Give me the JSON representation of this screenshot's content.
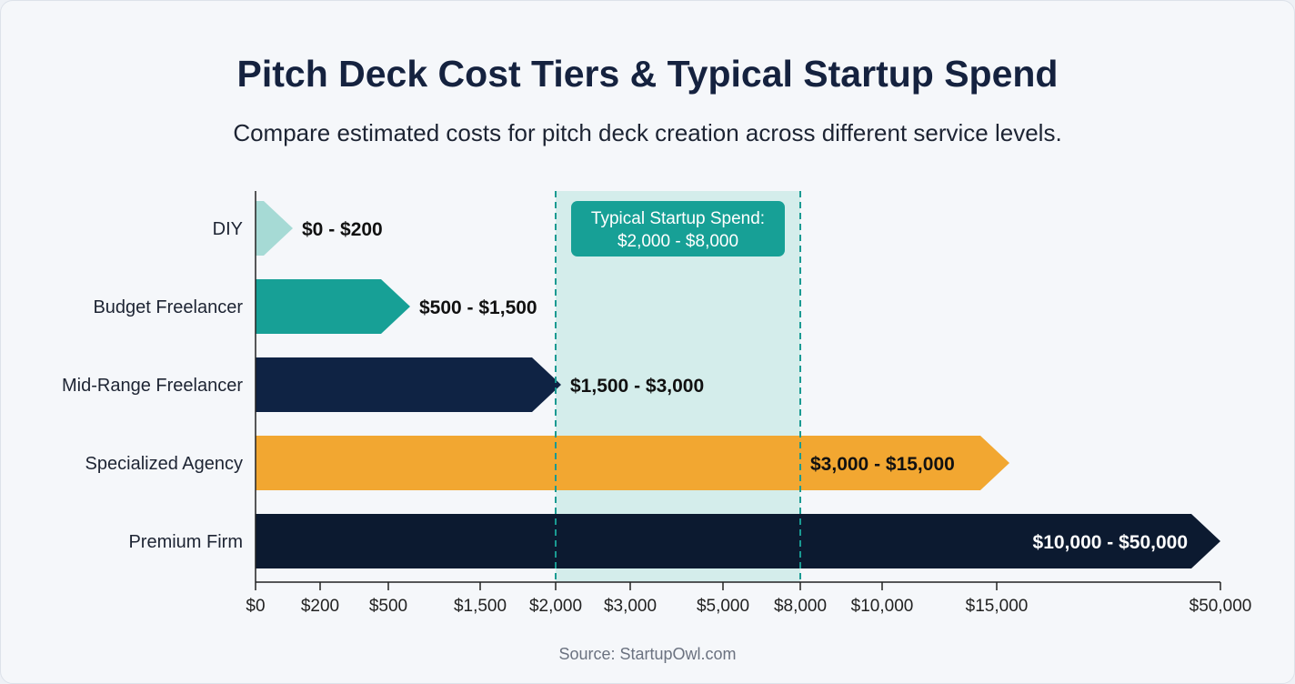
{
  "chart_data": {
    "type": "bar",
    "title": "Pitch Deck Cost Tiers & Typical Startup Spend",
    "subtitle": "Compare estimated costs for pitch deck creation across different service levels.",
    "source": "Source: StartupOwl.com",
    "categories": [
      "DIY",
      "Budget Freelancer",
      "Mid-Range Freelancer",
      "Specialized Agency",
      "Premium Firm"
    ],
    "ranges": [
      [
        0,
        200
      ],
      [
        500,
        1500
      ],
      [
        1500,
        3000
      ],
      [
        3000,
        15000
      ],
      [
        10000,
        50000
      ]
    ],
    "range_labels": [
      "$0 - $200",
      "$500 - $1,500",
      "$1,500 - $3,000",
      "$3,000 - $15,000",
      "$10,000 - $50,000"
    ],
    "colors": [
      "#a6dad5",
      "#17a096",
      "#0f2344",
      "#f2a731",
      "#0c1a30"
    ],
    "x_ticks": [
      0,
      200,
      500,
      1500,
      2000,
      3000,
      5000,
      8000,
      10000,
      15000,
      50000
    ],
    "x_tick_labels": [
      "$0",
      "$200",
      "$500",
      "$1,500",
      "$2,000",
      "$3,000",
      "$5,000",
      "$8,000",
      "$10,000",
      "$15,000",
      "$50,000"
    ],
    "xlim": [
      0,
      50000
    ],
    "x_scale": "non-linear (custom ticks)",
    "highlight_band": {
      "range": [
        2000,
        8000
      ],
      "label_line1": "Typical Startup Spend:",
      "label_line2": "$2,000 - $8,000",
      "fill": "#d4edeb",
      "line_color": "#1a9a92"
    },
    "grid": false,
    "legend": "none"
  }
}
